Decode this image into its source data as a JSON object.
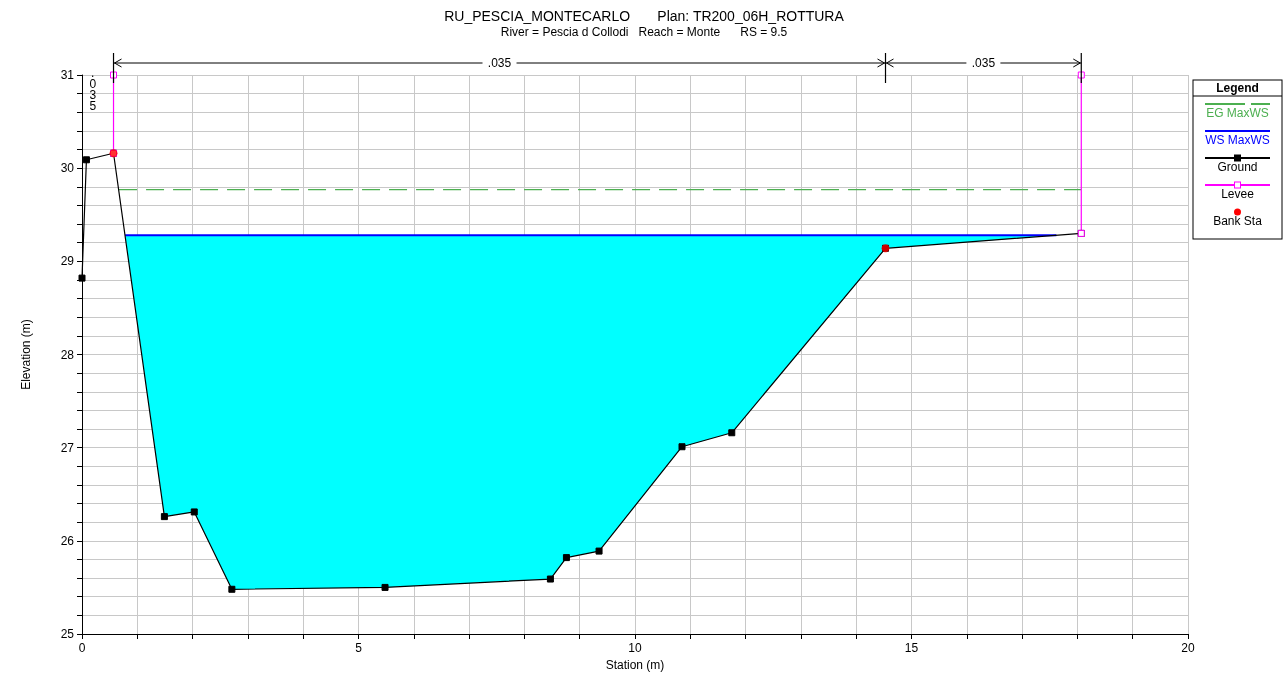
{
  "chart_data": {
    "type": "line",
    "title": "RU_PESCIA_MONTECARLO       Plan: TR200_06H_ROTTURA",
    "subtitle": "River = Pescia d Collodi   Reach = Monte      RS = 9.5",
    "xlabel": "Station (m)",
    "ylabel": "Elevation (m)",
    "legend_title": "Legend",
    "legend": "right",
    "grid": true,
    "xlim": [
      0,
      20
    ],
    "xticks": [
      0,
      5,
      10,
      15,
      20
    ],
    "ylim": [
      25,
      31
    ],
    "yticks": [
      25,
      26,
      27,
      28,
      29,
      30,
      31
    ],
    "annotations": [
      ".035",
      ".035",
      ".035"
    ],
    "series": [
      {
        "name": "EG MaxWS",
        "color": "#4caf50",
        "line_style": "dashed",
        "marker": "none",
        "x": [
          0.67,
          18.07
        ],
        "values": [
          29.77,
          29.77
        ]
      },
      {
        "name": "WS MaxWS",
        "color": "#0000ff",
        "line_style": "solid",
        "marker": "none",
        "x": [
          0.78,
          1.49,
          2.03,
          2.71,
          5.48,
          8.47,
          8.76,
          9.35,
          10.85,
          11.75,
          14.53,
          17.62
        ],
        "values": [
          29.28,
          29.28,
          29.28,
          29.28,
          29.28,
          29.28,
          29.28,
          29.28,
          29.28,
          29.28,
          29.28,
          29.28
        ],
        "lower": [
          29.28,
          26.26,
          26.31,
          25.48,
          25.5,
          25.59,
          25.82,
          25.89,
          27.01,
          27.16,
          29.14,
          29.28
        ],
        "upper": [
          29.28,
          29.28,
          29.28,
          29.28,
          29.28,
          29.28,
          29.28,
          29.28,
          29.28,
          29.28,
          29.28,
          29.28
        ]
      },
      {
        "name": "Ground",
        "color": "#000000",
        "line_style": "solid",
        "marker": "square",
        "x": [
          0,
          0.08,
          0.57,
          1.49,
          2.03,
          2.71,
          5.48,
          8.47,
          8.76,
          9.35,
          10.85,
          11.75,
          14.53,
          18.07
        ],
        "values": [
          28.82,
          30.09,
          30.16,
          26.26,
          26.31,
          25.48,
          25.5,
          25.59,
          25.82,
          25.89,
          27.01,
          27.16,
          29.14,
          29.3
        ]
      },
      {
        "name": "Levee",
        "color": "#ff00ff",
        "line_style": "solid",
        "marker": "square",
        "x": [
          0.57,
          0.57
        ],
        "values": [
          30.16,
          31
        ]
      },
      {
        "color": "#ff00ff",
        "line_style": "solid",
        "marker": "square",
        "x": [
          18.07,
          18.07
        ],
        "values": [
          31,
          29.3
        ]
      },
      {
        "name": "Bank Sta",
        "type": "scatter",
        "color": "#ff0000",
        "marker": "circle",
        "x": [
          0.57,
          14.53
        ],
        "values": [
          30.16,
          29.14
        ]
      }
    ]
  }
}
